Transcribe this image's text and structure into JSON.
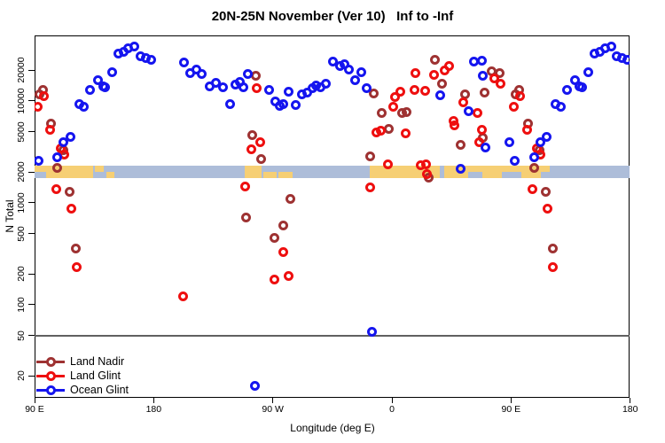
{
  "title": "20N-25N November (Ver 10)   Inf to -Inf",
  "axes": {
    "x": {
      "label": "Longitude (deg E)",
      "ticks": [
        {
          "deg_from_start": 0,
          "label": "90 E"
        },
        {
          "deg_from_start": 90,
          "label": "180"
        },
        {
          "deg_from_start": 180,
          "label": "90 W"
        },
        {
          "deg_from_start": 270,
          "label": "0"
        },
        {
          "deg_from_start": 360,
          "label": "90 E"
        },
        {
          "deg_from_start": 450,
          "label": "180"
        }
      ]
    },
    "y": {
      "label": "N Total",
      "scale": "log",
      "tick_values": [
        20000,
        10000,
        5000,
        2000,
        1000,
        500,
        200,
        100,
        50,
        20
      ]
    }
  },
  "reference_line": {
    "value": 50,
    "color": "#606060"
  },
  "map_band": {
    "value_center": 2000,
    "ocean_color": "#ADBDD9",
    "land_color": "#F6CF74",
    "land_segments": [
      {
        "t0": 0,
        "t1": 44.3,
        "part": "full"
      },
      {
        "t0": 45.6,
        "t1": 52.3,
        "part": "top"
      },
      {
        "t0": 54.3,
        "t1": 60.5,
        "part": "bottom"
      },
      {
        "t0": 158.8,
        "t1": 171.5,
        "part": "full"
      },
      {
        "t0": 172.8,
        "t1": 182.9,
        "part": "bottom"
      },
      {
        "t0": 184.2,
        "t1": 195.0,
        "part": "bottom"
      },
      {
        "t0": 253.2,
        "t1": 306.5,
        "part": "full"
      },
      {
        "t0": 309.2,
        "t1": 382.5,
        "part": "full"
      },
      {
        "t0": 382.5,
        "t1": 389.2,
        "part": "top"
      }
    ],
    "ocean_overlays": [
      {
        "t0": 0,
        "t1": 8.7,
        "part": "bottom"
      },
      {
        "t0": 327.6,
        "t1": 338.3,
        "part": "bottom"
      },
      {
        "t0": 353.0,
        "t1": 367.8,
        "part": "bottom"
      }
    ]
  },
  "legend": {
    "items": [
      {
        "label": "Land Nadir",
        "color": "#9E3232"
      },
      {
        "label": "Land Glint",
        "color": "#EE0F0F"
      },
      {
        "label": "Ocean Glint",
        "color": "#1515EF"
      }
    ]
  },
  "chart_data": {
    "type": "scatter",
    "title": "20N-25N November (Ver 10)   Inf to -Inf",
    "xlabel": "Longitude (deg E)",
    "ylabel": "N Total",
    "y_scale": "log",
    "ylim": [
      15,
      45000
    ],
    "x_axis_note": "axis runs 450 deg eastward from 90E (90E,180,90W,0,90E,180); data in 90E-180E plotted twice",
    "series": [
      {
        "name": "Land Nadir",
        "color": "#9E3232",
        "points": [
          [
            93.5,
            11500
          ],
          [
            96.3,
            12900
          ],
          [
            102.5,
            6050
          ],
          [
            107.4,
            2210
          ],
          [
            111.6,
            3280
          ],
          [
            116.3,
            1280
          ],
          [
            121.3,
            355
          ],
          [
            -110.4,
            720
          ],
          [
            -105.6,
            4610
          ],
          [
            -103,
            17600
          ],
          [
            -98.5,
            2680
          ],
          [
            -89.1,
            455
          ],
          [
            -82.2,
            600
          ],
          [
            -76.8,
            1100
          ],
          [
            -16.3,
            2860
          ],
          [
            -13.6,
            11800
          ],
          [
            -7.4,
            7550
          ],
          [
            -2.5,
            5350
          ],
          [
            7.5,
            7550
          ],
          [
            11.3,
            7700
          ],
          [
            27.6,
            1780
          ],
          [
            32.7,
            25100
          ],
          [
            38.1,
            14700
          ],
          [
            52.2,
            3700
          ],
          [
            55.1,
            11700
          ],
          [
            68.9,
            4380
          ],
          [
            70.1,
            12100
          ],
          [
            75.6,
            19700
          ],
          [
            81.2,
            18900
          ]
        ]
      },
      {
        "name": "Land Glint",
        "color": "#EE0F0F",
        "points": [
          [
            92,
            8700
          ],
          [
            97,
            11100
          ],
          [
            101.9,
            5250
          ],
          [
            106.3,
            1350
          ],
          [
            109.6,
            3400
          ],
          [
            112.3,
            3000
          ],
          [
            117.5,
            875
          ],
          [
            121.9,
            235
          ],
          [
            -158.1,
            120
          ],
          [
            -111.2,
            1460
          ],
          [
            -105.9,
            3330
          ],
          [
            -102.5,
            13300
          ],
          [
            -99.6,
            3900
          ],
          [
            -89.1,
            177
          ],
          [
            -82.4,
            330
          ],
          [
            -77.9,
            190
          ],
          [
            -16.3,
            1420
          ],
          [
            -11.9,
            4900
          ],
          [
            -8.1,
            5100
          ],
          [
            -2.9,
            2400
          ],
          [
            0.8,
            8700
          ],
          [
            2.4,
            10900
          ],
          [
            6.4,
            12300
          ],
          [
            10.4,
            4800
          ],
          [
            17.1,
            12700
          ],
          [
            17.5,
            18900
          ],
          [
            22,
            2330
          ],
          [
            25,
            12500
          ],
          [
            26,
            2380
          ],
          [
            26.5,
            1910
          ],
          [
            32,
            17900
          ],
          [
            40,
            19800
          ],
          [
            43.2,
            21900
          ],
          [
            46.6,
            6400
          ],
          [
            47,
            5800
          ],
          [
            54,
            9700
          ],
          [
            64.4,
            7600
          ],
          [
            66.2,
            3940
          ],
          [
            67.8,
            5250
          ],
          [
            77.4,
            16800
          ],
          [
            81.9,
            14700
          ]
        ]
      },
      {
        "name": "Ocean Glint",
        "color": "#1515EF",
        "points": [
          [
            93,
            2600
          ],
          [
            107.4,
            2800
          ],
          [
            111.9,
            3900
          ],
          [
            117,
            4400
          ],
          [
            123.5,
            9400
          ],
          [
            127.5,
            8700
          ],
          [
            132,
            12900
          ],
          [
            138.2,
            15900
          ],
          [
            142,
            13900
          ],
          [
            143.4,
            13500
          ],
          [
            148.7,
            19000
          ],
          [
            153.2,
            29000
          ],
          [
            157,
            30500
          ],
          [
            161,
            33000
          ],
          [
            165.5,
            34500
          ],
          [
            169.9,
            27500
          ],
          [
            174,
            26500
          ],
          [
            177.8,
            25500
          ],
          [
            -157,
            23700
          ],
          [
            -152.6,
            18900
          ],
          [
            -148,
            20500
          ],
          [
            -143.6,
            18300
          ],
          [
            -137.5,
            13800
          ],
          [
            -133.1,
            15100
          ],
          [
            -127.5,
            13600
          ],
          [
            -122.6,
            9350
          ],
          [
            -118.1,
            14500
          ],
          [
            -115.2,
            15500
          ],
          [
            -111.9,
            13600
          ],
          [
            -109.2,
            18300
          ],
          [
            -103.4,
            16
          ],
          [
            -92.5,
            12800
          ],
          [
            -87.8,
            9900
          ],
          [
            -84.6,
            9000
          ],
          [
            -81.8,
            9300
          ],
          [
            -78.4,
            12200
          ],
          [
            -72.9,
            9200
          ],
          [
            -67.7,
            11600
          ],
          [
            -63.9,
            12000
          ],
          [
            -60.1,
            13300
          ],
          [
            -57.2,
            14200
          ],
          [
            -53.8,
            13700
          ],
          [
            -49.8,
            14700
          ],
          [
            -44.5,
            24300
          ],
          [
            -39.3,
            22200
          ],
          [
            -36,
            23000
          ],
          [
            -32.6,
            20200
          ],
          [
            -28.1,
            15900
          ],
          [
            -22.9,
            19200
          ],
          [
            -19.2,
            13300
          ],
          [
            -15.2,
            54
          ],
          [
            36.6,
            11400
          ],
          [
            52.2,
            2150
          ],
          [
            57.8,
            8000
          ],
          [
            61.8,
            24200
          ],
          [
            67.8,
            24700
          ],
          [
            68.9,
            17500
          ],
          [
            70.8,
            3500
          ],
          [
            88.6,
            3900
          ]
        ]
      }
    ]
  }
}
